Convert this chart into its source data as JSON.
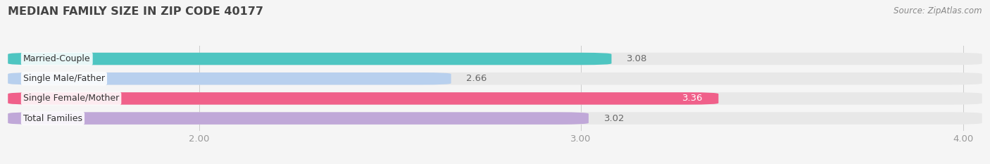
{
  "title": "MEDIAN FAMILY SIZE IN ZIP CODE 40177",
  "source": "Source: ZipAtlas.com",
  "categories": [
    "Married-Couple",
    "Single Male/Father",
    "Single Female/Mother",
    "Total Families"
  ],
  "values": [
    3.08,
    2.66,
    3.36,
    3.02
  ],
  "bar_colors": [
    "#4ec5c1",
    "#b8d0ee",
    "#f0608a",
    "#c0a8d8"
  ],
  "bar_bg_color": "#e8e8e8",
  "xmin": 1.5,
  "xmax": 4.05,
  "xticks": [
    2.0,
    3.0,
    4.0
  ],
  "xtick_labels": [
    "2.00",
    "3.00",
    "4.00"
  ],
  "bar_height": 0.62,
  "background_color": "#f5f5f5",
  "title_fontsize": 11.5,
  "tick_fontsize": 9.5,
  "value_fontsize": 9.5,
  "cat_fontsize": 9,
  "source_fontsize": 8.5,
  "value_colors": [
    "#666666",
    "#666666",
    "#ffffff",
    "#666666"
  ]
}
